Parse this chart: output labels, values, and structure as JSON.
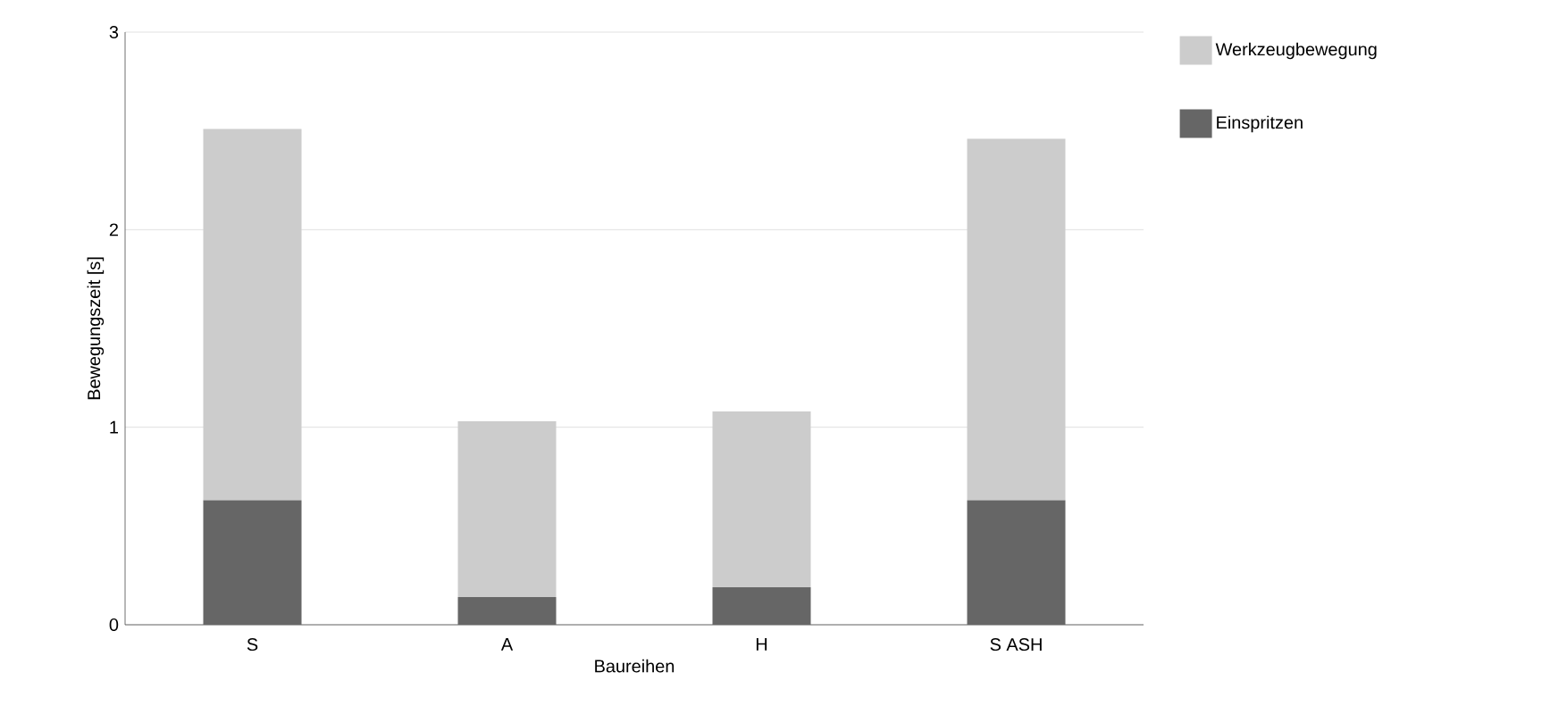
{
  "chart_data": {
    "type": "bar",
    "stacked": true,
    "xlabel": "Baureihen",
    "ylabel": "Bewegungszeit [s]",
    "categories": [
      "S",
      "A",
      "H",
      "S ASH"
    ],
    "series": [
      {
        "name": "Einspritzen",
        "color": "#666666",
        "values": [
          0.63,
          0.14,
          0.19,
          0.63
        ]
      },
      {
        "name": "Werkzeugbewegung",
        "color": "#cccccc",
        "values": [
          1.88,
          0.89,
          0.89,
          1.83
        ]
      }
    ],
    "ylim": [
      0,
      3
    ],
    "yticks": [
      0,
      1,
      2,
      3
    ],
    "grid": "y",
    "legend": "right"
  }
}
